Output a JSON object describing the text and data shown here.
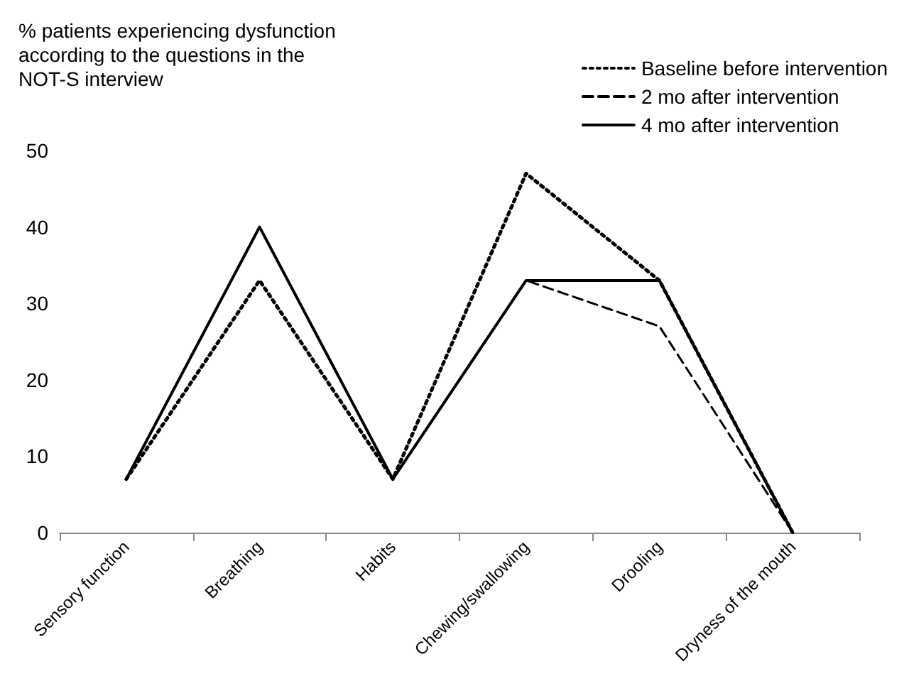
{
  "chart_data": {
    "type": "line",
    "ylabel": "% patients experiencing dysfunction according to the questions in the NOT-S interview",
    "categories": [
      "Sensory function",
      "Breathing",
      "Habits",
      "Chewing/swallowing",
      "Drooling",
      "Dryness of the mouth"
    ],
    "series": [
      {
        "name": "Baseline before intervention",
        "color": "#000000",
        "line_style": "dotted",
        "values": [
          7,
          33,
          7,
          47,
          33,
          0
        ]
      },
      {
        "name": "2 mo after intervention",
        "color": "#000000",
        "line_style": "dashed",
        "values": [
          7,
          40,
          7,
          33,
          27,
          0
        ]
      },
      {
        "name": "4 mo after intervention",
        "color": "#000000",
        "line_style": "solid",
        "values": [
          7,
          40,
          7,
          33,
          33,
          0
        ]
      }
    ],
    "ylim": [
      0,
      50
    ],
    "yticks": [
      0,
      10,
      20,
      30,
      40,
      50
    ],
    "grid": false,
    "legend": "top right",
    "marker": "none"
  }
}
